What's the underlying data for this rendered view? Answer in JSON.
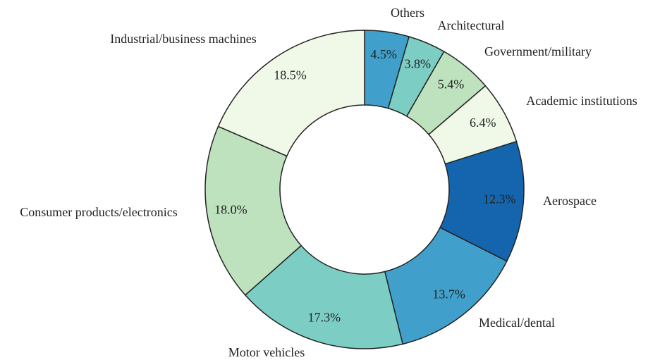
{
  "chart_data": {
    "type": "donut",
    "categories": [
      "Others",
      "Architectural",
      "Government/military",
      "Academic institutions",
      "Aerospace",
      "Medical/dental",
      "Motor vehicles",
      "Consumer products/electronics",
      "Industrial/business machines"
    ],
    "values": [
      4.5,
      3.8,
      5.4,
      6.4,
      12.3,
      13.7,
      17.3,
      18.0,
      18.5
    ],
    "value_labels": [
      "4.5%",
      "3.8%",
      "5.4%",
      "6.4%",
      "12.3%",
      "13.7%",
      "17.3%",
      "18.0%",
      "18.5%"
    ],
    "colors": [
      "#41a0cb",
      "#7ccdc4",
      "#bde2bd",
      "#f0f9e8",
      "#1565ae",
      "#41a0cb",
      "#7ccdc4",
      "#bde2bd",
      "#f0f9e8"
    ]
  }
}
